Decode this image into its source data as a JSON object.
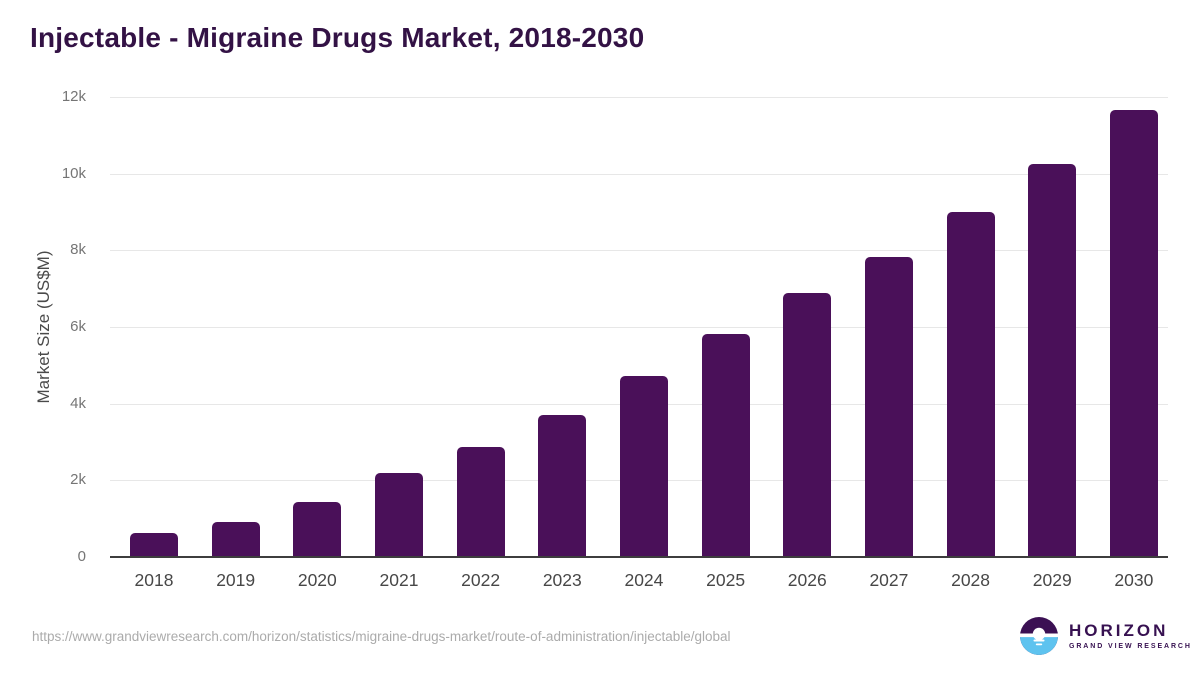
{
  "page": {
    "source_url": "https://www.grandviewresearch.com/horizon/statistics/migraine-drugs-market/route-of-administration/injectable/global"
  },
  "chart_data": {
    "type": "bar",
    "title": "Injectable - Migraine Drugs Market, 2018-2030",
    "categories": [
      "2018",
      "2019",
      "2020",
      "2021",
      "2022",
      "2023",
      "2024",
      "2025",
      "2026",
      "2027",
      "2028",
      "2029",
      "2030"
    ],
    "values": [
      620,
      905,
      1430,
      2190,
      2870,
      3700,
      4720,
      5810,
      6880,
      7820,
      8990,
      10255,
      11650
    ],
    "xlabel": "",
    "ylabel": "Market Size (US$M)",
    "ylim": [
      0,
      12000
    ],
    "yticks": [
      {
        "value": 0,
        "label": "0"
      },
      {
        "value": 2000,
        "label": "2k"
      },
      {
        "value": 4000,
        "label": "4k"
      },
      {
        "value": 6000,
        "label": "6k"
      },
      {
        "value": 8000,
        "label": "8k"
      },
      {
        "value": 10000,
        "label": "10k"
      },
      {
        "value": 12000,
        "label": "12k"
      }
    ],
    "grid": true,
    "legend_position": "none",
    "bar_color": "#4a1059",
    "title_color": "#331245"
  },
  "branding": {
    "logo_name": "HORIZON",
    "logo_subtext": "GRAND VIEW RESEARCH",
    "logo_purple": "#3b1053",
    "logo_blue": "#5ec3ef"
  }
}
